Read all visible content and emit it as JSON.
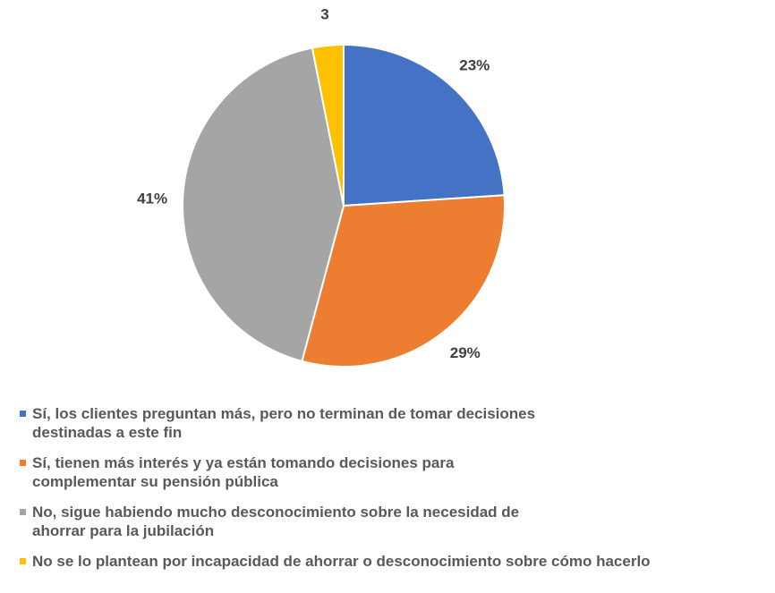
{
  "chart_data": {
    "type": "pie",
    "categories": [
      "Sí, los clientes preguntan más, pero no terminan de tomar decisiones destinadas a este fin",
      "Sí, tienen más interés y ya están tomando decisiones para complementar su pensión pública",
      "No, sigue habiendo mucho desconocimiento sobre la necesidad de ahorrar para la jubilación",
      "No se lo plantean por incapacidad de ahorrar o desconocimiento sobre cómo hacerlo"
    ],
    "values": [
      23,
      29,
      41,
      3
    ],
    "value_labels": [
      "23%",
      "29%",
      "41%",
      "3"
    ],
    "colors": [
      "#4472c4",
      "#ed7d31",
      "#a5a5a5",
      "#ffc000"
    ],
    "legend": "bottom"
  }
}
